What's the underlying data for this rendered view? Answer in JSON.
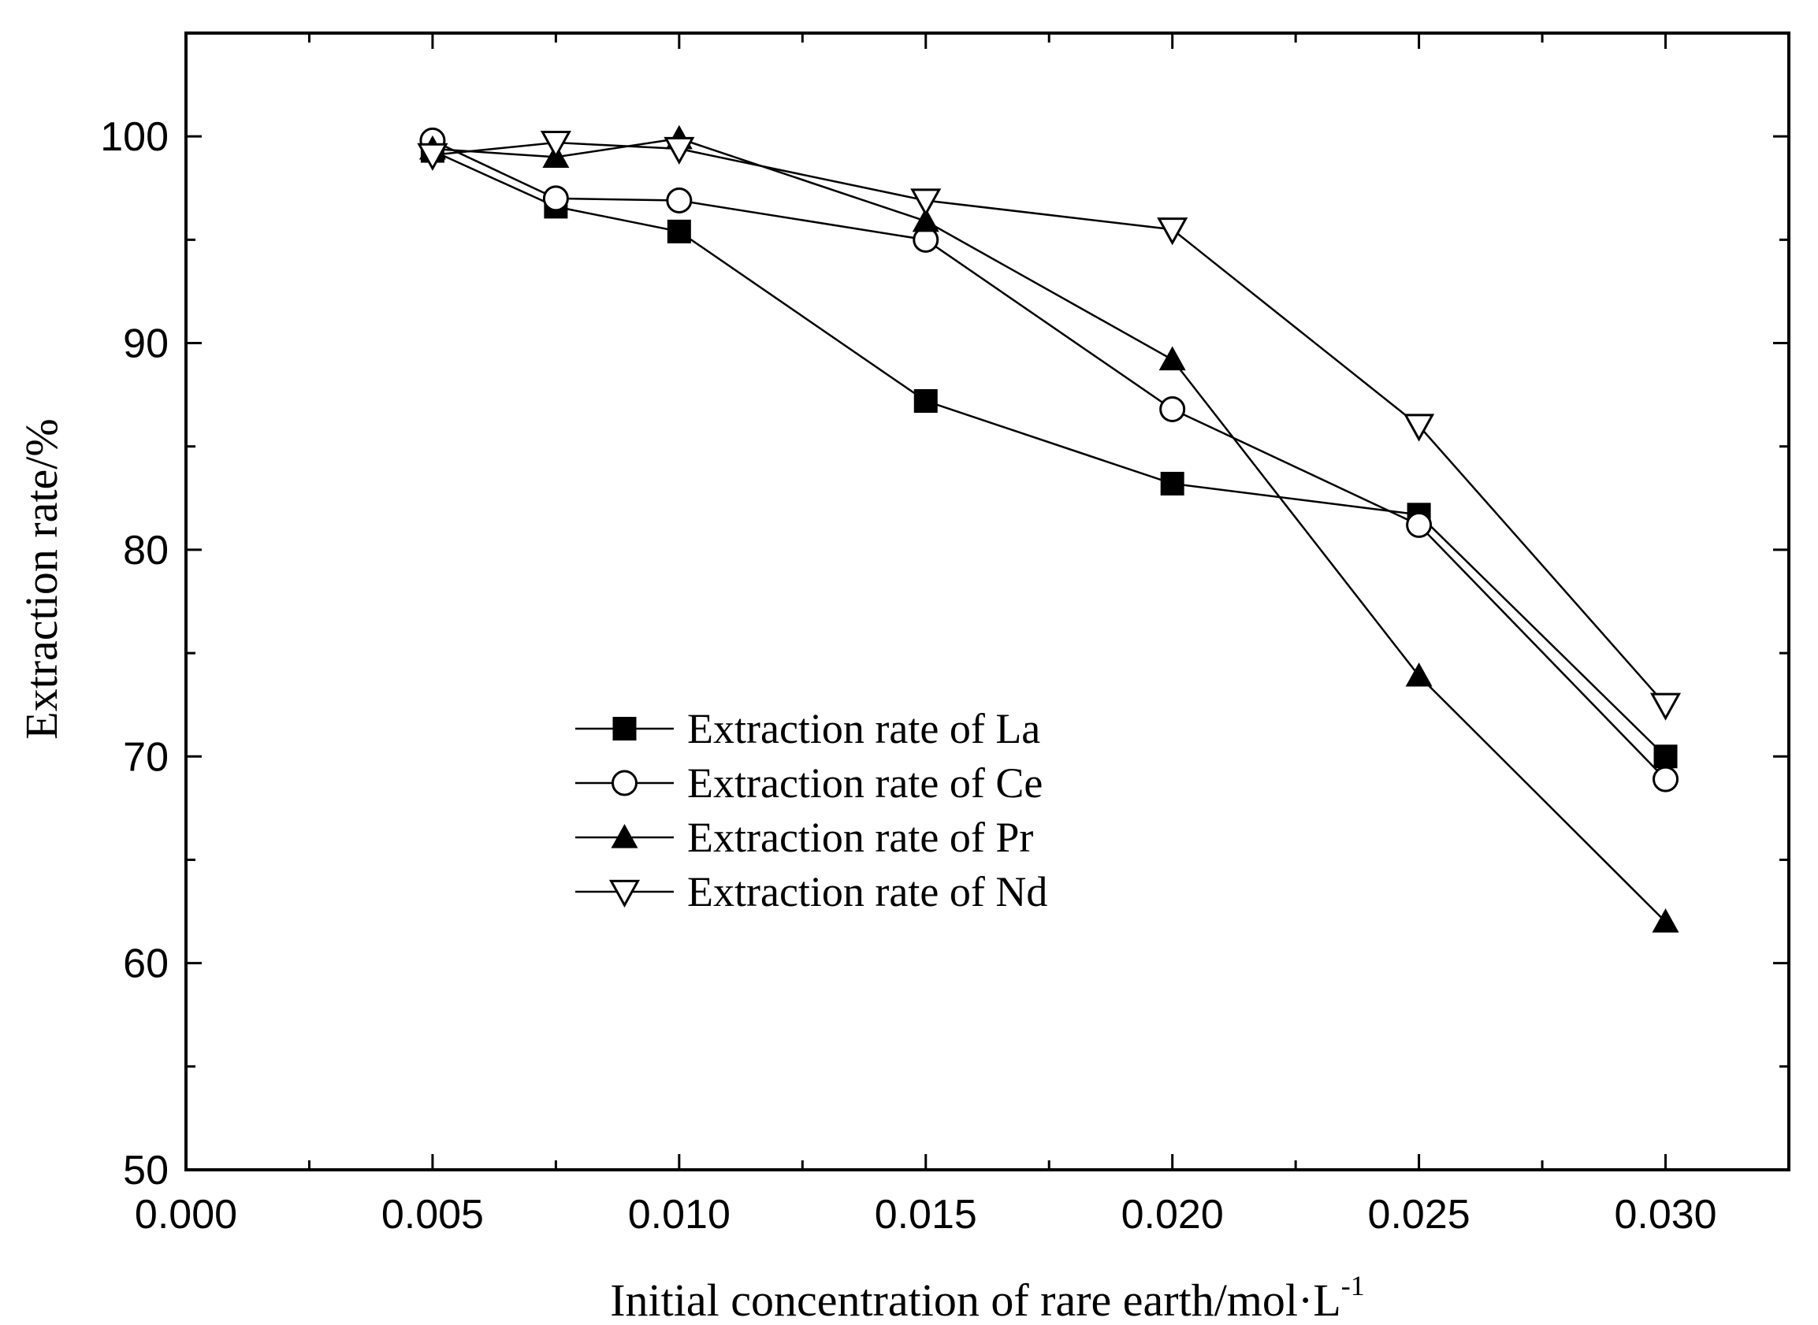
{
  "chart_data": {
    "type": "line",
    "title": "",
    "xlabel": "Initial concentration of rare earth/mol·L",
    "xlabel_superscript": "-1",
    "ylabel": "Extraction rate/%",
    "xlim": [
      0.0,
      0.0325
    ],
    "ylim": [
      50,
      105
    ],
    "x_ticks": [
      0.0,
      0.005,
      0.01,
      0.015,
      0.02,
      0.025,
      0.03
    ],
    "x_tick_labels": [
      "0.000",
      "0.005",
      "0.010",
      "0.015",
      "0.020",
      "0.025",
      "0.030"
    ],
    "y_ticks": [
      50,
      60,
      70,
      80,
      90,
      100
    ],
    "y_tick_labels": [
      "50",
      "60",
      "70",
      "80",
      "90",
      "100"
    ],
    "grid": false,
    "legend_position": "center-left",
    "x": [
      0.005,
      0.0075,
      0.01,
      0.015,
      0.02,
      0.025,
      0.03
    ],
    "series": [
      {
        "name": "Extraction rate of La",
        "marker": "filled-square",
        "values": [
          99.3,
          96.6,
          95.4,
          87.2,
          83.2,
          81.7,
          70.0
        ]
      },
      {
        "name": "Extraction rate of Ce",
        "marker": "open-circle",
        "values": [
          99.8,
          97.0,
          96.9,
          95.0,
          86.8,
          81.2,
          68.9
        ]
      },
      {
        "name": "Extraction rate of Pr",
        "marker": "filled-triangle-up",
        "values": [
          99.4,
          99.0,
          99.9,
          95.9,
          89.2,
          73.9,
          62.0
        ]
      },
      {
        "name": "Extraction rate of Nd",
        "marker": "open-triangle-down",
        "values": [
          99.1,
          99.7,
          99.4,
          96.9,
          95.5,
          86.0,
          72.5
        ]
      }
    ]
  }
}
